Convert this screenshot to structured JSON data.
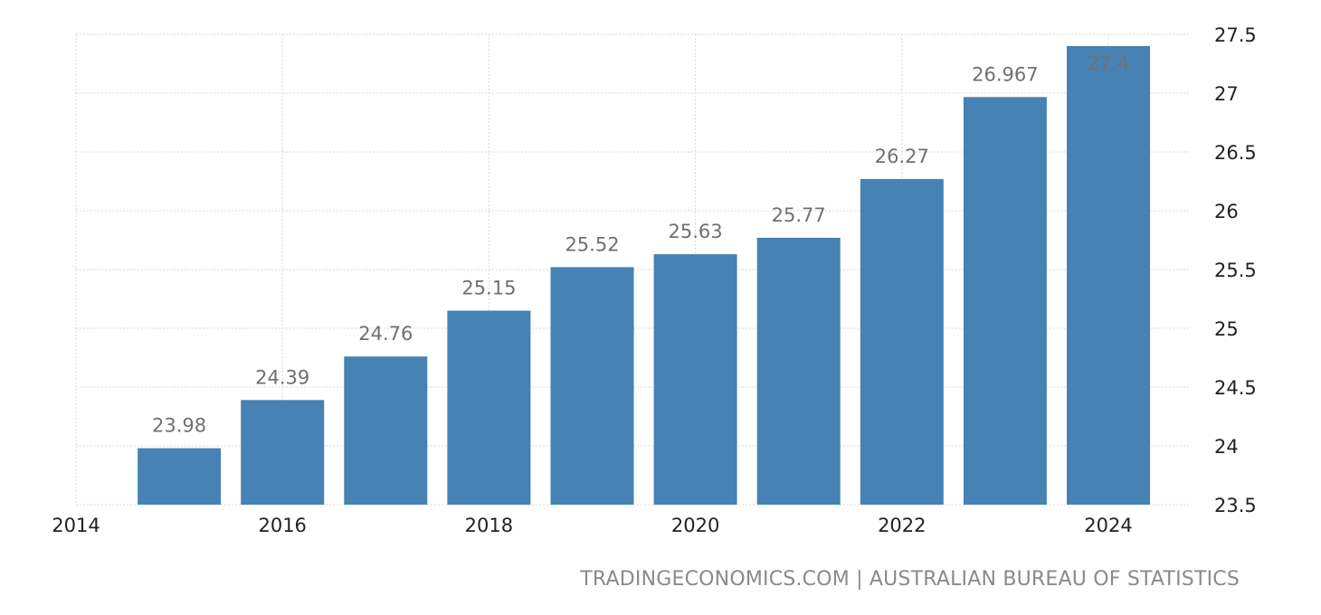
{
  "chart_data": {
    "type": "bar",
    "categories": [
      "2015",
      "2016",
      "2017",
      "2018",
      "2019",
      "2020",
      "2021",
      "2022",
      "2023",
      "2024"
    ],
    "values": [
      23.98,
      24.39,
      24.76,
      25.15,
      25.52,
      25.63,
      25.77,
      26.27,
      26.967,
      27.4
    ],
    "value_labels": [
      "23.98",
      "24.39",
      "24.76",
      "25.15",
      "25.52",
      "25.63",
      "25.77",
      "26.27",
      "26.967",
      "27.4"
    ],
    "ylim": [
      23.5,
      27.5
    ],
    "y_ticks": [
      23.5,
      24,
      24.5,
      25,
      25.5,
      26,
      26.5,
      27,
      27.5
    ],
    "y_tick_labels": [
      "23.5",
      "24",
      "24.5",
      "25",
      "25.5",
      "26",
      "26.5",
      "27",
      "27.5"
    ],
    "x_ticks": [
      2014,
      2016,
      2018,
      2020,
      2022,
      2024
    ],
    "x_tick_labels": [
      "2014",
      "2016",
      "2018",
      "2020",
      "2022",
      "2024"
    ],
    "y_axis_side": "right",
    "grid": true,
    "bar_color": "#4682b4",
    "title": "",
    "xlabel": "",
    "ylabel": ""
  },
  "footer": {
    "source": "TRADINGECONOMICS.COM | AUSTRALIAN BUREAU OF STATISTICS"
  }
}
